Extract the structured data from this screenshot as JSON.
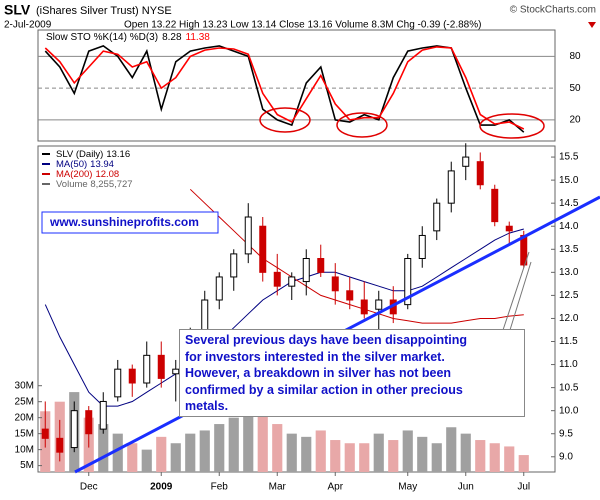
{
  "header": {
    "symbol": "SLV",
    "name": "(iShares Silver Trust) NYSE",
    "credit": "© StockCharts.com",
    "date": "2-Jul-2009",
    "stats": "Open 13.22 High 13.23 Low 13.14 Close 13.16 Volume 8.3M Chg -0.39 (-2.88%)"
  },
  "chart_data": [
    {
      "type": "line",
      "title": "Slow STO %K(14) %D(3)",
      "ylim": [
        0,
        105
      ],
      "yticks": [
        20,
        50,
        80
      ],
      "grid": true,
      "series": [
        {
          "color": "#000000",
          "values": [
            85,
            70,
            45,
            85,
            90,
            80,
            60,
            85,
            30,
            75,
            85,
            88,
            90,
            85,
            80,
            30,
            20,
            15,
            55,
            70,
            20,
            18,
            25,
            20,
            60,
            85,
            88,
            90,
            88,
            50,
            15,
            15,
            20,
            8.28
          ]
        },
        {
          "color": "#ff0000",
          "values": [
            88,
            75,
            55,
            70,
            85,
            82,
            70,
            75,
            50,
            60,
            80,
            86,
            88,
            87,
            82,
            45,
            25,
            18,
            40,
            62,
            35,
            20,
            22,
            22,
            45,
            75,
            86,
            89,
            88,
            60,
            25,
            16,
            18,
            11.38
          ]
        }
      ]
    },
    {
      "type": "candlestick",
      "categories": [
        null,
        null,
        null,
        "Dec",
        null,
        null,
        null,
        null,
        "2009",
        null,
        null,
        null,
        "Feb",
        null,
        null,
        null,
        "Mar",
        null,
        null,
        null,
        "Apr",
        null,
        null,
        null,
        null,
        "May",
        null,
        null,
        null,
        "Jun",
        null,
        null,
        null,
        "Jul"
      ],
      "ylim": [
        8.67,
        15.74
      ],
      "yticks": [
        {
          "value": 9,
          "label": "9.0"
        },
        9.5,
        {
          "value": 10,
          "label": "10.0"
        },
        10.5,
        {
          "value": 11,
          "label": "11.0"
        },
        11.5,
        {
          "value": 12,
          "label": "12.0"
        },
        12.5,
        {
          "value": 13,
          "label": "13.0"
        },
        13.5,
        {
          "value": 14,
          "label": "14.0"
        },
        14.5,
        {
          "value": 15,
          "label": "15.0"
        },
        15.5
      ],
      "y2lim": [
        3,
        105
      ],
      "y2ticks": [
        {
          "value": 5,
          "label": "5M"
        },
        {
          "value": 10,
          "label": "10M"
        },
        {
          "value": 15,
          "label": "15M"
        },
        {
          "value": 20,
          "label": "20M"
        },
        {
          "value": 25,
          "label": "25M"
        },
        {
          "value": 30,
          "label": "30M"
        }
      ],
      "grid": false,
      "up_color": "#000000",
      "down_color": "#cc0000",
      "series": [
        {
          "name": "SLV (Daily)",
          "open": [
            9.6,
            9.4,
            9.2,
            10.0,
            9.6,
            10.3,
            10.9,
            10.6,
            11.2,
            10.8,
            11.0,
            11.6,
            12.4,
            12.9,
            13.4,
            14.0,
            13.0,
            12.7,
            12.8,
            13.3,
            12.9,
            12.6,
            12.4,
            12.2,
            12.4,
            12.3,
            13.3,
            13.9,
            14.5,
            15.3,
            15.4,
            14.8,
            14.0,
            13.8
          ],
          "high": [
            10.2,
            9.8,
            10.2,
            10.1,
            10.4,
            11.1,
            11.0,
            11.5,
            11.5,
            11.1,
            11.8,
            12.6,
            13.0,
            13.5,
            14.5,
            14.2,
            13.4,
            13.0,
            13.5,
            13.6,
            13.2,
            12.9,
            12.8,
            12.6,
            12.7,
            13.4,
            14.0,
            14.6,
            15.4,
            15.8,
            15.6,
            14.9,
            14.1,
            13.9
          ],
          "low": [
            9.2,
            8.9,
            9.1,
            9.2,
            9.5,
            10.2,
            10.3,
            10.5,
            10.5,
            10.2,
            10.9,
            11.4,
            12.2,
            12.6,
            13.2,
            12.8,
            12.5,
            12.4,
            12.5,
            12.9,
            12.3,
            12.2,
            12.0,
            11.7,
            11.9,
            12.2,
            13.1,
            13.7,
            14.3,
            15.0,
            14.8,
            14.0,
            13.6,
            13.1
          ],
          "close": [
            9.4,
            9.1,
            10.0,
            9.5,
            10.2,
            10.9,
            10.6,
            11.2,
            10.7,
            10.9,
            11.6,
            12.4,
            12.9,
            13.4,
            14.2,
            13.0,
            12.7,
            12.9,
            13.3,
            13.0,
            12.6,
            12.4,
            12.1,
            12.4,
            12.1,
            13.3,
            13.8,
            14.5,
            15.2,
            15.5,
            14.9,
            14.1,
            13.9,
            13.16
          ]
        },
        {
          "name": "MA(50)",
          "color": "#000080",
          "values": [
            12.3,
            11.6,
            11.0,
            10.4,
            10.1,
            10.1,
            10.2,
            10.4,
            10.6,
            10.8,
            11.0,
            11.2,
            11.5,
            11.8,
            12.1,
            12.4,
            12.6,
            12.8,
            12.9,
            13.0,
            13.0,
            12.9,
            12.8,
            12.7,
            12.6,
            12.6,
            12.7,
            12.9,
            13.1,
            13.3,
            13.5,
            13.7,
            13.85,
            13.94
          ]
        },
        {
          "name": "MA(200)",
          "color": "#cc0000",
          "values": [
            null,
            null,
            null,
            null,
            null,
            null,
            null,
            null,
            null,
            null,
            14.8,
            14.5,
            14.2,
            13.9,
            13.6,
            13.3,
            13.1,
            12.9,
            12.7,
            12.5,
            12.4,
            12.3,
            12.2,
            12.1,
            12.0,
            11.95,
            11.9,
            11.9,
            11.9,
            11.95,
            12.0,
            12.0,
            12.05,
            12.08
          ]
        },
        {
          "name": "Volume 8,255,727",
          "axis": "y2",
          "color": "#a0a0a0",
          "down_color": "#e8a8a8",
          "values": [
            22,
            25,
            28,
            20,
            18,
            15,
            12,
            10,
            14,
            12,
            15,
            16,
            18,
            20,
            22,
            24,
            18,
            15,
            14,
            16,
            13,
            12,
            12,
            15,
            13,
            16,
            14,
            12,
            17,
            15,
            13,
            12,
            11,
            8.3
          ]
        }
      ],
      "annotations": {
        "url": "www.sunshineprofits.com",
        "note_lines": [
          "Several previous days have been disappointing",
          "for investors interested in the silver market.",
          "However, a breakdown in silver has not been",
          "confirmed by a similar action in other precious",
          "metals."
        ]
      }
    }
  ]
}
